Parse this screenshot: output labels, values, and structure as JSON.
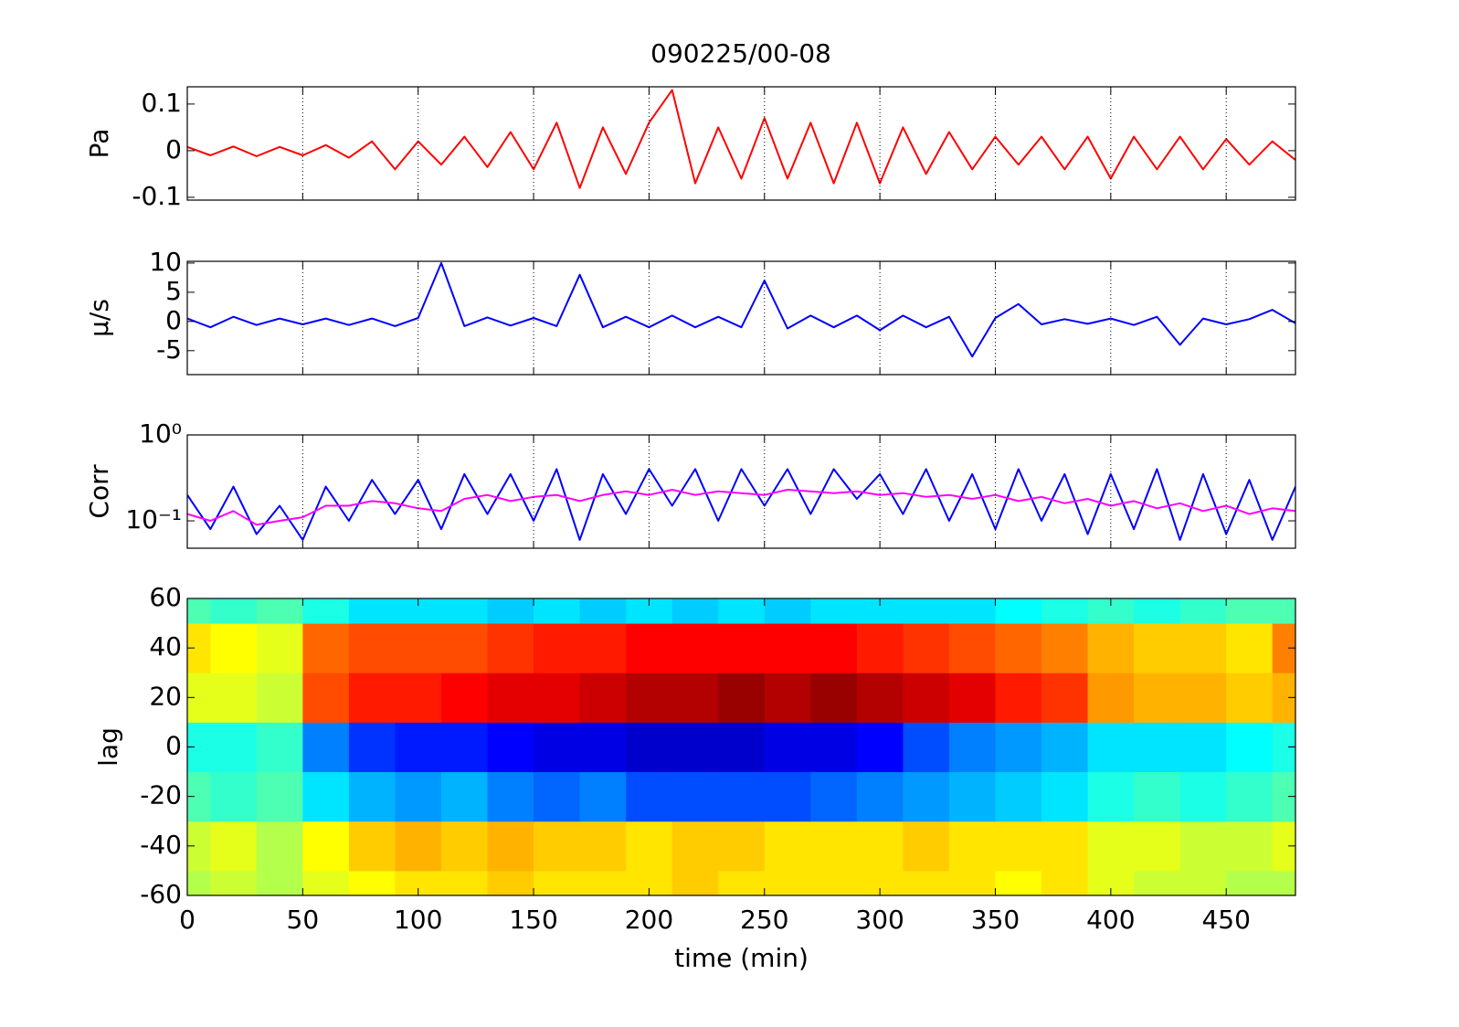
{
  "chart_data": [
    {
      "type": "line",
      "title": "090225/00-08",
      "ylabel": "Pa",
      "xlim": [
        0,
        480
      ],
      "xticks": [
        0,
        50,
        100,
        150,
        200,
        250,
        300,
        350,
        400,
        450
      ],
      "xgrid": true,
      "ylim": [
        -0.106,
        0.137
      ],
      "yticks": [
        -0.1,
        0,
        0.1
      ],
      "x": [
        0,
        10,
        20,
        30,
        40,
        50,
        60,
        70,
        80,
        90,
        100,
        110,
        120,
        130,
        140,
        150,
        160,
        170,
        180,
        190,
        200,
        210,
        220,
        230,
        240,
        250,
        260,
        270,
        280,
        290,
        300,
        310,
        320,
        330,
        340,
        350,
        360,
        370,
        380,
        390,
        400,
        410,
        420,
        430,
        440,
        450,
        460,
        470,
        480
      ],
      "series": [
        {
          "color": "#ff0000",
          "values": [
            0.008,
            -0.01,
            0.009,
            -0.012,
            0.008,
            -0.01,
            0.012,
            -0.015,
            0.02,
            -0.04,
            0.02,
            -0.03,
            0.03,
            -0.035,
            0.04,
            -0.04,
            0.06,
            -0.08,
            0.05,
            -0.05,
            0.06,
            0.13,
            -0.07,
            0.05,
            -0.06,
            0.07,
            -0.06,
            0.06,
            -0.07,
            0.06,
            -0.07,
            0.05,
            -0.05,
            0.04,
            -0.04,
            0.03,
            -0.03,
            0.03,
            -0.04,
            0.03,
            -0.06,
            0.03,
            -0.04,
            0.03,
            -0.04,
            0.025,
            -0.03,
            0.02,
            -0.02
          ]
        }
      ]
    },
    {
      "type": "line",
      "ylabel": "μ/s",
      "xlim": [
        0,
        480
      ],
      "xticks": [
        0,
        50,
        100,
        150,
        200,
        250,
        300,
        350,
        400,
        450
      ],
      "xgrid": true,
      "ylim": [
        -9.1,
        10.3
      ],
      "yticks": [
        -5,
        0,
        5,
        10
      ],
      "x": [
        0,
        10,
        20,
        30,
        40,
        50,
        60,
        70,
        80,
        90,
        100,
        110,
        120,
        130,
        140,
        150,
        160,
        170,
        180,
        190,
        200,
        210,
        220,
        230,
        240,
        250,
        260,
        270,
        280,
        290,
        300,
        310,
        320,
        330,
        340,
        350,
        360,
        370,
        380,
        390,
        400,
        410,
        420,
        430,
        440,
        450,
        460,
        470,
        480
      ],
      "series": [
        {
          "color": "#0000ff",
          "values": [
            0.5,
            -1,
            0.8,
            -0.6,
            0.5,
            -0.5,
            0.5,
            -0.6,
            0.5,
            -0.8,
            0.6,
            10,
            -0.8,
            0.7,
            -0.7,
            0.6,
            -0.8,
            8,
            -1,
            0.8,
            -1,
            1,
            -1,
            0.8,
            -1,
            7,
            -1.2,
            1,
            -1,
            1,
            -1.5,
            1,
            -1,
            0.8,
            -6,
            0.6,
            3,
            -0.5,
            0.4,
            -0.4,
            0.5,
            -0.6,
            0.8,
            -4,
            0.5,
            -0.5,
            0.4,
            2,
            -0.3
          ]
        }
      ]
    },
    {
      "type": "line",
      "ylabel": "Corr",
      "yscale": "log",
      "xlim": [
        0,
        480
      ],
      "xticks": [
        0,
        50,
        100,
        150,
        200,
        250,
        300,
        350,
        400,
        450
      ],
      "xgrid": true,
      "ylim": [
        0.048,
        1
      ],
      "yticks": [
        {
          "value": 0.1,
          "label": "10⁻¹"
        },
        {
          "value": 1,
          "label": "10⁰"
        }
      ],
      "x": [
        0,
        10,
        20,
        30,
        40,
        50,
        60,
        70,
        80,
        90,
        100,
        110,
        120,
        130,
        140,
        150,
        160,
        170,
        180,
        190,
        200,
        210,
        220,
        230,
        240,
        250,
        260,
        270,
        280,
        290,
        300,
        310,
        320,
        330,
        340,
        350,
        360,
        370,
        380,
        390,
        400,
        410,
        420,
        430,
        440,
        450,
        460,
        470,
        480
      ],
      "series": [
        {
          "color": "#0000ff",
          "values": [
            0.2,
            0.08,
            0.25,
            0.07,
            0.15,
            0.06,
            0.25,
            0.1,
            0.3,
            0.12,
            0.3,
            0.08,
            0.35,
            0.12,
            0.35,
            0.1,
            0.4,
            0.06,
            0.35,
            0.12,
            0.4,
            0.15,
            0.4,
            0.1,
            0.4,
            0.15,
            0.4,
            0.12,
            0.4,
            0.18,
            0.35,
            0.12,
            0.4,
            0.1,
            0.35,
            0.08,
            0.4,
            0.1,
            0.35,
            0.07,
            0.35,
            0.08,
            0.4,
            0.06,
            0.35,
            0.07,
            0.3,
            0.06,
            0.25
          ]
        },
        {
          "color": "#ff00ff",
          "values": [
            0.12,
            0.1,
            0.13,
            0.09,
            0.1,
            0.11,
            0.15,
            0.15,
            0.17,
            0.16,
            0.14,
            0.13,
            0.18,
            0.2,
            0.17,
            0.19,
            0.2,
            0.17,
            0.2,
            0.22,
            0.2,
            0.23,
            0.2,
            0.22,
            0.21,
            0.2,
            0.23,
            0.22,
            0.21,
            0.22,
            0.2,
            0.21,
            0.19,
            0.2,
            0.18,
            0.2,
            0.17,
            0.19,
            0.16,
            0.18,
            0.15,
            0.17,
            0.14,
            0.16,
            0.13,
            0.15,
            0.12,
            0.14,
            0.13
          ]
        }
      ]
    },
    {
      "type": "heatmap",
      "ylabel": "lag",
      "xlabel": "time (min)",
      "xlim": [
        0,
        480
      ],
      "xticks": [
        0,
        50,
        100,
        150,
        200,
        250,
        300,
        350,
        400,
        450
      ],
      "ylim": [
        -60,
        60
      ],
      "yticks": [
        -60,
        -40,
        -20,
        0,
        20,
        40,
        60
      ],
      "clim": [
        -1,
        1
      ],
      "x": [
        0,
        20,
        40,
        60,
        80,
        100,
        120,
        140,
        160,
        180,
        200,
        220,
        240,
        260,
        280,
        300,
        320,
        340,
        360,
        380,
        400,
        420,
        440,
        460,
        480
      ],
      "y": [
        -60,
        -40,
        -20,
        0,
        20,
        40,
        60
      ],
      "z": [
        [
          0.1,
          0.15,
          0.1,
          0.2,
          0.25,
          0.3,
          0.3,
          0.35,
          0.3,
          0.3,
          0.3,
          0.35,
          0.3,
          0.3,
          0.3,
          0.3,
          0.3,
          0.3,
          0.25,
          0.3,
          0.2,
          0.15,
          0.15,
          0.1,
          0.1
        ],
        [
          0.15,
          0.2,
          0.1,
          0.25,
          0.35,
          0.4,
          0.35,
          0.4,
          0.35,
          0.35,
          0.3,
          0.35,
          0.35,
          0.3,
          0.3,
          0.3,
          0.35,
          0.3,
          0.3,
          0.3,
          0.2,
          0.2,
          0.15,
          0.15,
          0.2
        ],
        [
          -0.1,
          -0.15,
          -0.1,
          -0.3,
          -0.4,
          -0.45,
          -0.4,
          -0.5,
          -0.55,
          -0.5,
          -0.6,
          -0.6,
          -0.6,
          -0.6,
          -0.55,
          -0.5,
          -0.45,
          -0.4,
          -0.35,
          -0.3,
          -0.2,
          -0.15,
          -0.2,
          -0.15,
          -0.1
        ],
        [
          -0.2,
          -0.2,
          -0.15,
          -0.5,
          -0.65,
          -0.7,
          -0.7,
          -0.75,
          -0.8,
          -0.8,
          -0.85,
          -0.85,
          -0.85,
          -0.8,
          -0.8,
          -0.75,
          -0.6,
          -0.5,
          -0.45,
          -0.4,
          -0.3,
          -0.3,
          -0.3,
          -0.25,
          -0.2
        ],
        [
          0.2,
          0.2,
          0.15,
          0.6,
          0.7,
          0.7,
          0.75,
          0.8,
          0.8,
          0.85,
          0.9,
          0.9,
          0.95,
          0.9,
          0.95,
          0.9,
          0.85,
          0.8,
          0.7,
          0.65,
          0.45,
          0.4,
          0.4,
          0.35,
          0.4
        ],
        [
          0.3,
          0.25,
          0.2,
          0.55,
          0.6,
          0.6,
          0.6,
          0.65,
          0.7,
          0.7,
          0.75,
          0.75,
          0.75,
          0.75,
          0.75,
          0.7,
          0.65,
          0.6,
          0.55,
          0.5,
          0.4,
          0.35,
          0.35,
          0.3,
          0.5
        ],
        [
          -0.1,
          -0.15,
          -0.1,
          -0.2,
          -0.3,
          -0.3,
          -0.3,
          -0.35,
          -0.3,
          -0.35,
          -0.3,
          -0.35,
          -0.3,
          -0.35,
          -0.3,
          -0.3,
          -0.3,
          -0.3,
          -0.25,
          -0.2,
          -0.15,
          -0.2,
          -0.15,
          -0.1,
          -0.1
        ]
      ]
    }
  ]
}
